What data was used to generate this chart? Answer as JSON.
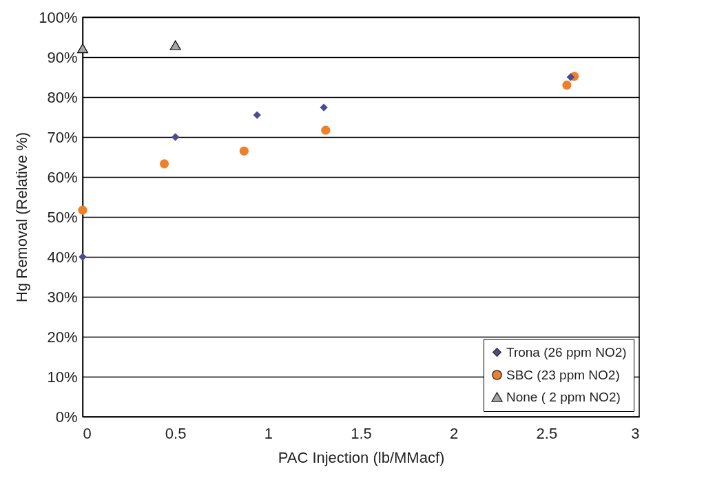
{
  "chart_data": {
    "type": "scatter",
    "xlabel": "PAC Injection (lb/MMacf)",
    "ylabel": "Hg Removal (Relative %)",
    "xlim": [
      0,
      3
    ],
    "xticks": [
      0,
      0.5,
      1,
      1.5,
      2,
      2.5,
      3
    ],
    "ylim": [
      0,
      100
    ],
    "yticks": [
      {
        "value": 0,
        "label": "0%"
      },
      {
        "value": 10,
        "label": "10%"
      },
      {
        "value": 20,
        "label": "20%"
      },
      {
        "value": 30,
        "label": "30%"
      },
      {
        "value": 40,
        "label": "40%"
      },
      {
        "value": 50,
        "label": "50%"
      },
      {
        "value": 60,
        "label": "60%"
      },
      {
        "value": 70,
        "label": "70%"
      },
      {
        "value": 80,
        "label": "80%"
      },
      {
        "value": 90,
        "label": "90%"
      },
      {
        "value": 100,
        "label": "100%"
      }
    ],
    "grid": "y",
    "legend": "bottom right",
    "series": [
      {
        "name": "Trona (26 ppm NO2)",
        "color": "#4b4d8f",
        "marker": "diamond",
        "x": [
          0,
          0.5,
          0.94,
          1.3,
          2.63
        ],
        "values": [
          40,
          70,
          75.5,
          77.4,
          85
        ]
      },
      {
        "name": "SBC (23 ppm NO2)",
        "color": "#f07f2a",
        "marker": "circle",
        "x": [
          0,
          0.44,
          0.87,
          1.31,
          2.61,
          2.65
        ],
        "values": [
          51.7,
          63.3,
          66.5,
          71.7,
          83,
          85.2
        ]
      },
      {
        "name": "None ( 2 ppm NO2)",
        "color": "#a6a6a6",
        "marker": "triangle",
        "x": [
          0,
          0.5
        ],
        "values": [
          92.2,
          93
        ]
      }
    ]
  }
}
